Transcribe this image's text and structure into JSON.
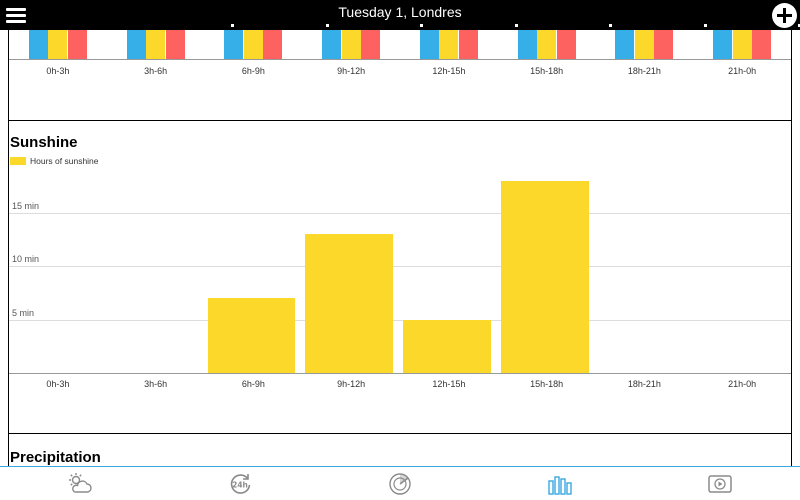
{
  "header": {
    "title": "Tuesday 1, Londres",
    "menu_icon": "menu-icon",
    "add_icon": "add-circle-icon",
    "page_indicator_count": 8
  },
  "time_slots": [
    "0h-3h",
    "3h-6h",
    "6h-9h",
    "9h-12h",
    "12h-15h",
    "15h-18h",
    "18h-21h",
    "21h-0h"
  ],
  "temperature_section": {
    "swatch_colors": [
      "#36aee8",
      "#fcd82b",
      "#fd6160"
    ]
  },
  "sunshine": {
    "title": "Sunshine",
    "legend": "Hours of sunshine",
    "bar_color": "#fcd82b"
  },
  "chart_data": {
    "type": "bar",
    "title": "Sunshine",
    "categories": [
      "0h-3h",
      "3h-6h",
      "6h-9h",
      "9h-12h",
      "12h-15h",
      "15h-18h",
      "18h-21h",
      "21h-0h"
    ],
    "series": [
      {
        "name": "Hours of sunshine",
        "values": [
          0,
          0,
          7,
          13,
          5,
          18,
          0,
          0
        ]
      }
    ],
    "ytick_values": [
      5,
      10,
      15
    ],
    "ytick_labels": [
      "5 min",
      "10 min",
      "15 min"
    ],
    "ylim": [
      0,
      20
    ],
    "grid": true,
    "legend_position": "top-left"
  },
  "precipitation": {
    "title": "Precipitation"
  },
  "bottom_nav": {
    "active_color": "#3aa7e0",
    "inactive_color": "#8a8a8a",
    "items": [
      {
        "icon": "weather-forecast-icon",
        "active": false
      },
      {
        "icon": "24h-icon",
        "active": false
      },
      {
        "icon": "radar-icon",
        "active": false
      },
      {
        "icon": "charts-icon",
        "active": true
      },
      {
        "icon": "video-icon",
        "active": false
      }
    ]
  }
}
